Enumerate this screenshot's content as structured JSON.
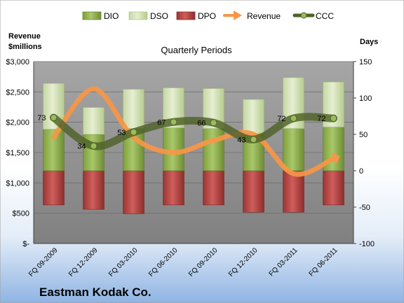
{
  "chart_data": {
    "type": "bar",
    "title": "Quarterly Periods",
    "company": "Eastman Kodak Co.",
    "left_axis_label": "Revenue\n$millions",
    "right_axis_label": "Days",
    "legend": {
      "dio": "DIO",
      "dso": "DSO",
      "dpo": "DPO",
      "revenue": "Revenue",
      "ccc": "CCC"
    },
    "legend_position": "top",
    "categories": [
      "FQ 09-2009",
      "FQ 12-2009",
      "FQ 03-2010",
      "FQ 06-2010",
      "FQ 09-2010",
      "FQ 12-2010",
      "FQ 03-2011",
      "FQ 06-2011"
    ],
    "left_axis": {
      "min": 0,
      "max": 3000,
      "step": 500,
      "tick_labels": [
        "$-",
        "$500",
        "$1,000",
        "$1,500",
        "$2,000",
        "$2,500",
        "$3,000"
      ]
    },
    "right_axis": {
      "min": -100,
      "max": 150,
      "step": 50,
      "tick_labels": [
        "-100",
        "-50",
        "0",
        "50",
        "100",
        "150"
      ]
    },
    "series": [
      {
        "name": "DPO",
        "axis": "days",
        "values": [
          -47,
          -53,
          -59,
          -47,
          -47,
          -57,
          -57,
          -47
        ],
        "color": "#c0504d"
      },
      {
        "name": "DIO",
        "axis": "days",
        "values": [
          57,
          50,
          58,
          59,
          58,
          51,
          58,
          60
        ],
        "color": "#9bbb59"
      },
      {
        "name": "DSO",
        "axis": "days",
        "values": [
          63,
          37,
          54,
          55,
          55,
          47,
          70,
          62
        ],
        "color": "#d7e4bd"
      },
      {
        "name": "Revenue",
        "axis": "revenue",
        "values": [
          1750,
          2550,
          1750,
          1500,
          1700,
          1800,
          1150,
          1400
        ],
        "color": "#f79646"
      },
      {
        "name": "CCC",
        "axis": "days",
        "values": [
          73,
          34,
          53,
          67,
          66,
          43,
          72,
          72
        ],
        "color": "#4f6228"
      }
    ],
    "ccc_labels": [
      "73",
      "34",
      "53",
      "67",
      "66",
      "43",
      "72",
      "72"
    ],
    "grid": true,
    "colors": {
      "plot_background": "#8c8c8c",
      "page_top": "#ffffff",
      "page_bottom": "#8fb4e3"
    }
  }
}
